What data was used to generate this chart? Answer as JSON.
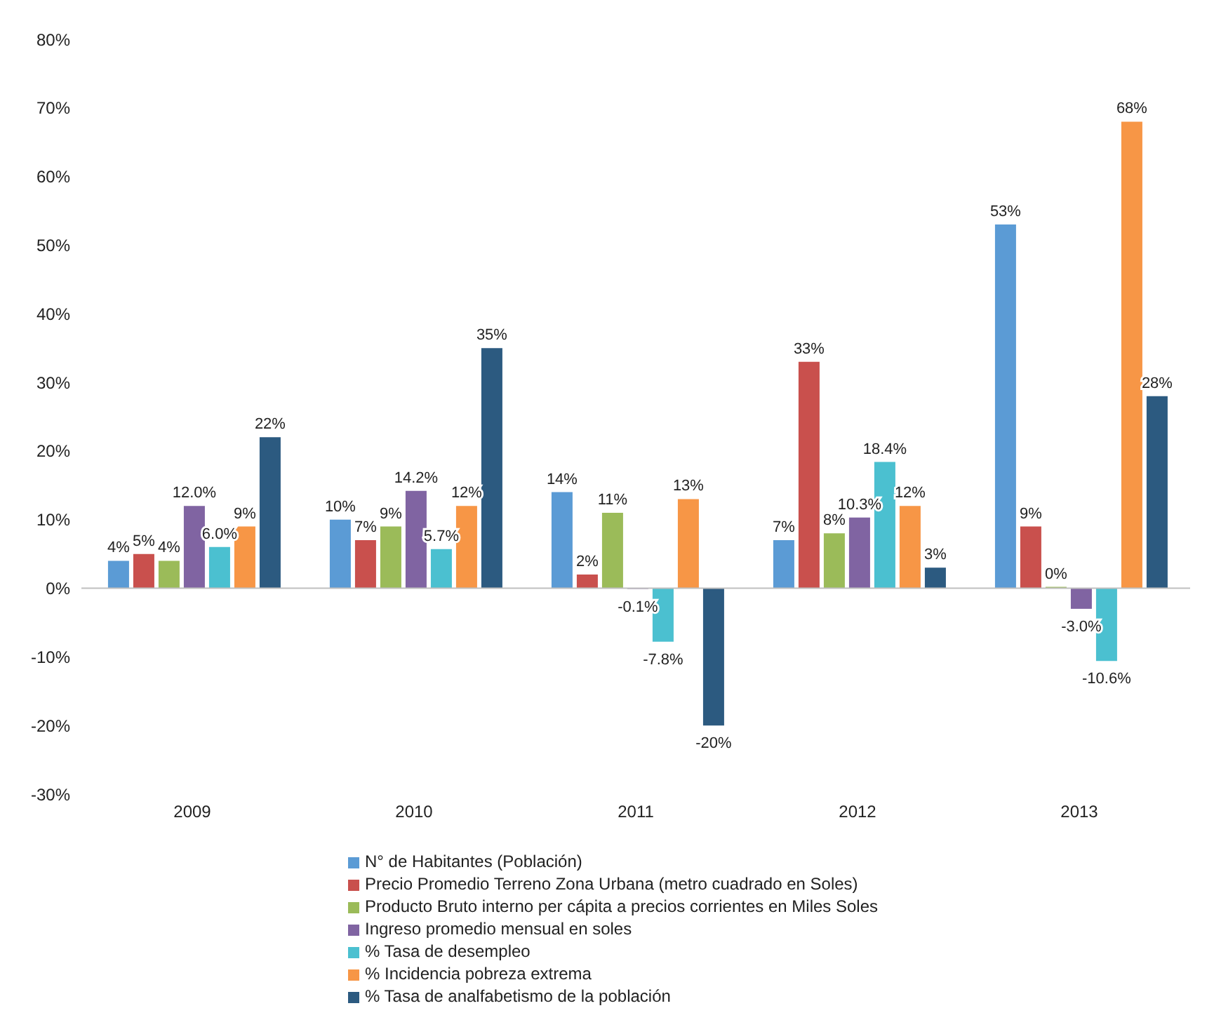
{
  "chart_data": {
    "type": "bar",
    "categories": [
      "2009",
      "2010",
      "2011",
      "2012",
      "2013"
    ],
    "ylim": [
      -30,
      80
    ],
    "yticks": [
      {
        "value": -30,
        "label": "-30%"
      },
      {
        "value": -20,
        "label": "-20%"
      },
      {
        "value": -10,
        "label": "-10%"
      },
      {
        "value": 0,
        "label": "0%"
      },
      {
        "value": 10,
        "label": "10%"
      },
      {
        "value": 20,
        "label": "20%"
      },
      {
        "value": 30,
        "label": "30%"
      },
      {
        "value": 40,
        "label": "40%"
      },
      {
        "value": 50,
        "label": "50%"
      },
      {
        "value": 60,
        "label": "60%"
      },
      {
        "value": 70,
        "label": "70%"
      },
      {
        "value": 80,
        "label": "80%"
      }
    ],
    "ref_lines": [
      {
        "axis": "y",
        "value": 0,
        "color": "#bfbfbf"
      }
    ],
    "legend": "bottom",
    "series": [
      {
        "name": "N° de Habitantes (Población)",
        "color": "#5b9bd5",
        "values": [
          4,
          10,
          14,
          7,
          53
        ],
        "value_labels": [
          "4%",
          "10%",
          "14%",
          "7%",
          "53%"
        ]
      },
      {
        "name": "Precio Promedio Terreno Zona Urbana (metro cuadrado en Soles)",
        "color": "#c9504d",
        "values": [
          5,
          7,
          2,
          33,
          9
        ],
        "value_labels": [
          "5%",
          "7%",
          "2%",
          "33%",
          "9%"
        ]
      },
      {
        "name": "Producto Bruto interno per cápita a precios corrientes en Miles Soles",
        "color": "#9bbb59",
        "values": [
          4,
          9,
          11,
          8,
          0
        ],
        "value_labels": [
          "4%",
          "9%",
          "11%",
          "8%",
          "0%"
        ]
      },
      {
        "name": "Ingreso promedio mensual en soles",
        "color": "#8064a2",
        "values": [
          12.0,
          14.2,
          -0.1,
          10.3,
          -3.0
        ],
        "value_labels": [
          "12.0%",
          "14.2%",
          "-0.1%",
          "10.3%",
          "-3.0%"
        ]
      },
      {
        "name": "% Tasa de desempleo",
        "color": "#4bc0d0",
        "values": [
          6.0,
          5.7,
          -7.8,
          18.4,
          -10.6
        ],
        "value_labels": [
          "6.0%",
          "5.7%",
          "-7.8%",
          "18.4%",
          "-10.6%"
        ]
      },
      {
        "name": "% Incidencia pobreza extrema",
        "color": "#f79646",
        "values": [
          9,
          12,
          13,
          12,
          68
        ],
        "value_labels": [
          "9%",
          "12%",
          "13%",
          "12%",
          "68%"
        ]
      },
      {
        "name": "% Tasa de analfabetismo de la población",
        "color": "#2c5a80",
        "values": [
          22,
          35,
          -20,
          3,
          28
        ],
        "value_labels": [
          "22%",
          "35%",
          "-20%",
          "3%",
          "28%"
        ]
      }
    ]
  }
}
